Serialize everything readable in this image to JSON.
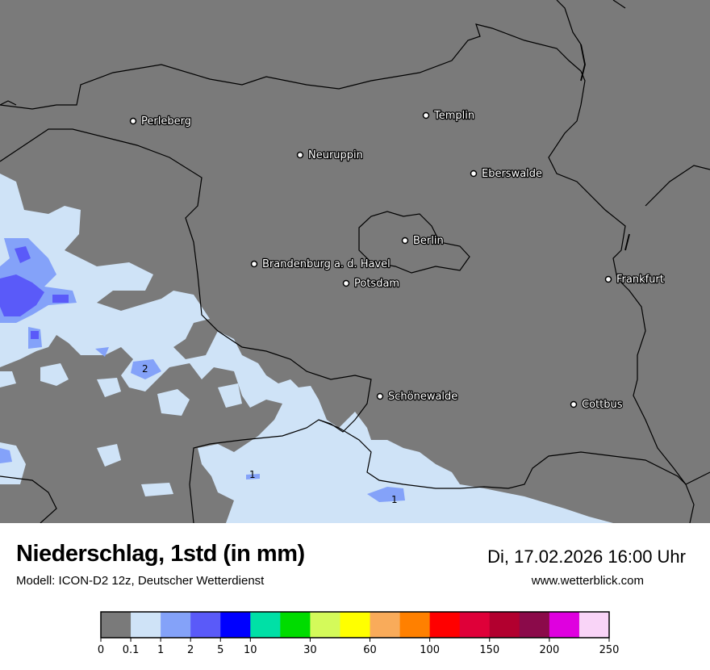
{
  "header": {
    "title": "Niederschlag, 1std (in mm)",
    "subtitle": "Modell: ICON-D2 12z, Deutscher Wetterdienst",
    "datetime": "Di, 17.02.2026 16:00 Uhr",
    "website": "www.wetterblick.com"
  },
  "map": {
    "background_color": "#7a7a7a",
    "cities": [
      {
        "name": "Perleberg"
      },
      {
        "name": "Neuruppin"
      },
      {
        "name": "Templin"
      },
      {
        "name": "Eberswalde"
      },
      {
        "name": "Berlin"
      },
      {
        "name": "Brandenburg a. d. Havel"
      },
      {
        "name": "Potsdam"
      },
      {
        "name": "Frankfurt"
      },
      {
        "name": "Schönewalde"
      },
      {
        "name": "Cottbus"
      }
    ],
    "contour_labels": [
      "2",
      "1",
      "1"
    ]
  },
  "legend": {
    "colors": [
      "#7a7a7a",
      "#cfe3f7",
      "#84a2f9",
      "#5a5af9",
      "#0000ff",
      "#00e0a6",
      "#00dc00",
      "#d4fa5a",
      "#ffff00",
      "#f9ab5a",
      "#ff8000",
      "#ff0000",
      "#df0039",
      "#b2002f",
      "#8b0a4a",
      "#df00df",
      "#f9d4f7"
    ],
    "ticks": [
      "0",
      "0.1",
      "1",
      "2",
      "5",
      "10",
      "30",
      "60",
      "100",
      "150",
      "200",
      "250"
    ]
  }
}
